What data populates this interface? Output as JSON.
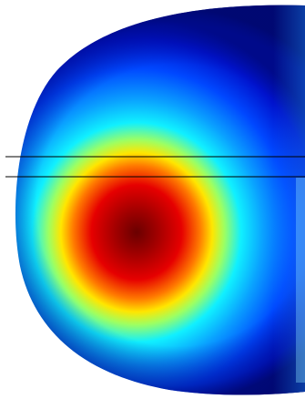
{
  "figure": {
    "kind": "field-distribution",
    "colormap": "jet",
    "colormap_stops": [
      "#00007f",
      "#0000ff",
      "#0080ff",
      "#00ffff",
      "#80ff80",
      "#ffff00",
      "#ff8000",
      "#ff0000",
      "#7f0000"
    ],
    "domain_shape": "semicircular-cross-section",
    "horizontal_lines": 2,
    "line_color": "#000000",
    "background_color": "#ffffff"
  }
}
